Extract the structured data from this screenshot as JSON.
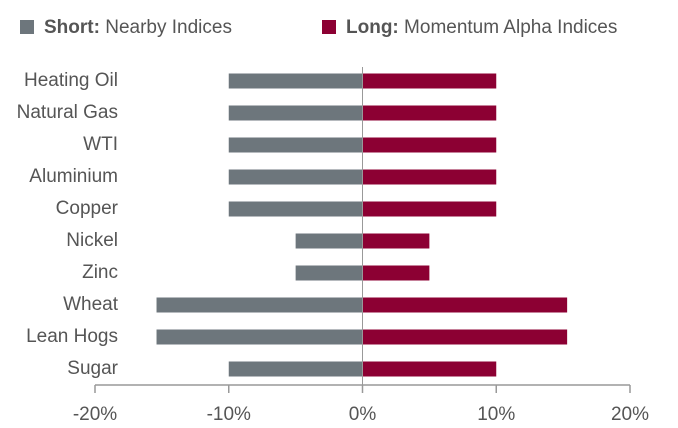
{
  "chart_data": {
    "type": "bar",
    "orientation": "horizontal",
    "categories": [
      "Heating Oil",
      "Natural Gas",
      "WTI",
      "Aluminium",
      "Copper",
      "Nickel",
      "Zinc",
      "Wheat",
      "Lean Hogs",
      "Sugar"
    ],
    "series": [
      {
        "name": "Short: Nearby Indices",
        "color": "#6d767c",
        "values": [
          -10,
          -10,
          -10,
          -10,
          -10,
          -5,
          -5,
          -15.4,
          -15.4,
          -10
        ]
      },
      {
        "name": "Long: Momentum Alpha Indices",
        "color": "#8c0033",
        "values": [
          10,
          10,
          10,
          10,
          10,
          5,
          5,
          15.3,
          15.3,
          10
        ]
      }
    ],
    "xlim": [
      -20,
      20
    ],
    "xticks": [
      {
        "value": -20,
        "label": "-20%"
      },
      {
        "value": -10,
        "label": "-10%"
      },
      {
        "value": 0,
        "label": "0%"
      },
      {
        "value": 10,
        "label": "10%"
      },
      {
        "value": 20,
        "label": "20%"
      }
    ],
    "legend": "top"
  }
}
